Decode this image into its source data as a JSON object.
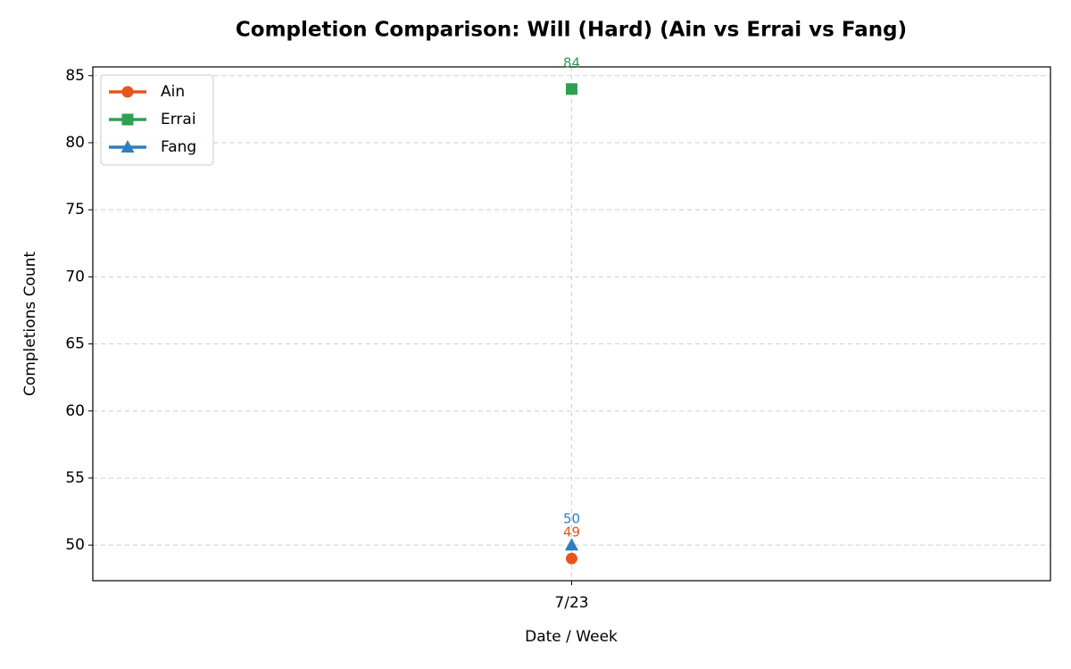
{
  "chart_data": {
    "type": "line",
    "title": "Completion Comparison: Will (Hard) (Ain vs Errai vs Fang)",
    "x_label": "Date / Week",
    "y_label": "Completions Count",
    "categories": [
      "7/23"
    ],
    "series": [
      {
        "name": "Ain",
        "color": "#e8541a",
        "marker": "circle",
        "values": [
          49
        ]
      },
      {
        "name": "Errai",
        "color": "#2ea052",
        "marker": "square",
        "values": [
          84
        ]
      },
      {
        "name": "Fang",
        "color": "#2f7fbe",
        "marker": "triangle",
        "values": [
          50
        ]
      }
    ],
    "ylim": [
      47.35,
      85.65
    ],
    "yticks": [
      50,
      55,
      60,
      65,
      70,
      75,
      80,
      85
    ],
    "grid": true,
    "legend": "upper left"
  }
}
